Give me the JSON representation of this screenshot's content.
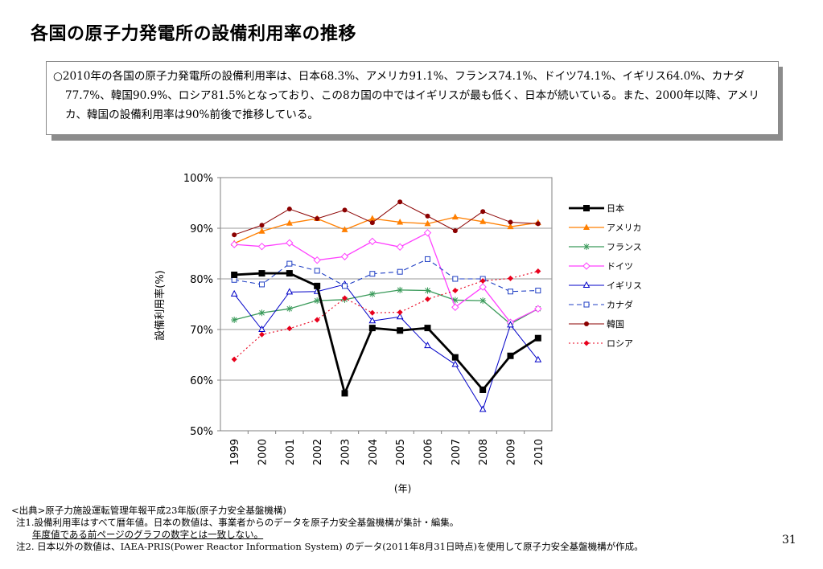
{
  "slide": {
    "title": "各国の原子力発電所の設備利用率の推移",
    "summary": "○2010年の各国の原子力発電所の設備利用率は、日本68.3%、アメリカ91.1%、フランス74.1%、ドイツ74.1%、イギリス64.0%、カナダ77.7%、韓国90.9%、ロシア81.5%となっており、この8カ国の中ではイギリスが最も低く、日本が続いている。また、2000年以降、アメリカ、韓国の設備利用率は90%前後で推移している。",
    "page_number": "31"
  },
  "notes": {
    "source": "<出典>原子力施設運転管理年報平成23年版(原子力安全基盤機構)",
    "note1": "注1.設備利用率はすべて暦年値。日本の数値は、事業者からのデータを原子力安全基盤機構が集計・編集。",
    "note1_emphasis": "年度値である前ページのグラフの数字とは一致しない。",
    "note2": "注2. 日本以外の数値は、IAEA-PRIS(Power Reactor Information System) のデータ(2011年8月31日時点)を使用して原子力安全基盤機構が作成。"
  },
  "chart_data": {
    "type": "line",
    "title": "",
    "xlabel": "(年)",
    "ylabel": "設備利用率(%)",
    "categories": [
      "1999",
      "2000",
      "2001",
      "2002",
      "2003",
      "2004",
      "2005",
      "2006",
      "2007",
      "2008",
      "2009",
      "2010"
    ],
    "ylim": [
      50,
      100
    ],
    "yticks": [
      50,
      60,
      70,
      80,
      90,
      100
    ],
    "ytick_labels": [
      "50%",
      "60%",
      "70%",
      "80%",
      "90%",
      "100%"
    ],
    "grid": true,
    "legend_position": "right",
    "series": [
      {
        "name": "日本",
        "color": "#000000",
        "marker": "square-filled",
        "dash": "solid",
        "width": 2.8,
        "values": [
          80.8,
          81.1,
          81.1,
          78.6,
          57.4,
          70.3,
          69.8,
          70.3,
          64.5,
          58.1,
          64.8,
          68.3
        ]
      },
      {
        "name": "アメリカ",
        "color": "#ff7f00",
        "marker": "triangle-filled",
        "dash": "solid",
        "width": 1.3,
        "values": [
          87.0,
          89.4,
          91.0,
          91.9,
          89.7,
          91.9,
          91.2,
          90.9,
          92.2,
          91.3,
          90.3,
          91.1
        ]
      },
      {
        "name": "フランス",
        "color": "#3a9a5a",
        "marker": "asterisk",
        "dash": "solid",
        "width": 1.3,
        "values": [
          71.9,
          73.3,
          74.1,
          75.7,
          75.9,
          77.0,
          77.8,
          77.7,
          75.8,
          75.7,
          71.1,
          74.1
        ]
      },
      {
        "name": "ドイツ",
        "color": "#ff40ff",
        "marker": "diamond-open",
        "dash": "solid",
        "width": 1.3,
        "values": [
          86.8,
          86.4,
          87.1,
          83.7,
          84.4,
          87.4,
          86.3,
          89.1,
          74.4,
          78.4,
          71.4,
          74.1
        ]
      },
      {
        "name": "イギリス",
        "color": "#0000c8",
        "marker": "triangle-open",
        "dash": "solid",
        "width": 1.0,
        "values": [
          77.0,
          70.0,
          77.4,
          77.5,
          78.9,
          71.7,
          72.5,
          66.8,
          63.1,
          54.2,
          70.9,
          64.0
        ]
      },
      {
        "name": "カナダ",
        "color": "#1f3fc4",
        "marker": "square-open",
        "dash": "dashed",
        "width": 1.1,
        "values": [
          79.8,
          78.9,
          83.0,
          81.6,
          78.6,
          81.0,
          81.4,
          83.9,
          80.0,
          80.0,
          77.5,
          77.7
        ]
      },
      {
        "name": "韓国",
        "color": "#8b0000",
        "marker": "circle-filled",
        "dash": "solid",
        "width": 1.0,
        "values": [
          88.7,
          90.6,
          93.8,
          91.9,
          93.6,
          91.1,
          95.2,
          92.4,
          89.5,
          93.3,
          91.2,
          90.9
        ]
      },
      {
        "name": "ロシア",
        "color": "#e8001c",
        "marker": "diamond-filled",
        "dash": "dotted",
        "width": 1.1,
        "values": [
          64.1,
          69.0,
          70.2,
          71.9,
          76.2,
          73.3,
          73.4,
          76.0,
          77.7,
          79.6,
          80.1,
          81.5
        ]
      }
    ]
  }
}
